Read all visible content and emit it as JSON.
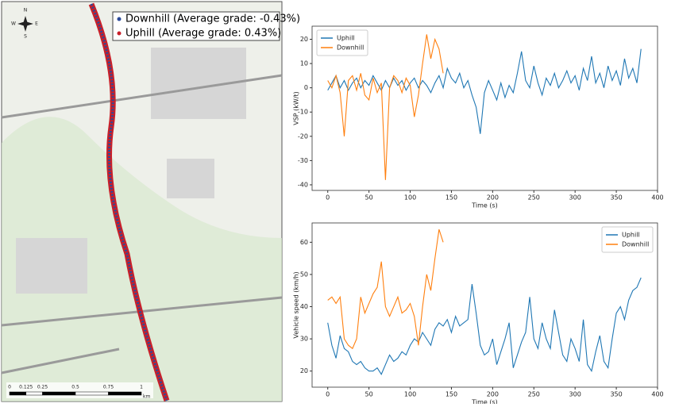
{
  "map": {
    "legend": [
      "Downhill (Average grade: -0.43%)",
      "Uphill (Average grade: 0.43%)"
    ],
    "legend_colors": [
      "#2b4a9a",
      "#c8202a"
    ],
    "compass": [
      "N",
      "S",
      "E",
      "W"
    ],
    "scale_labels": [
      "0",
      "0.125",
      "0.25",
      "0.5",
      "0.75",
      "1"
    ],
    "scale_unit": "km"
  },
  "chart_data": [
    {
      "type": "line",
      "ylabel": "VSP (kW/t)",
      "xlabel": "Time (s)",
      "legend": "upper left",
      "xlim": [
        -19,
        400
      ],
      "ylim": [
        -42.3,
        25.4
      ],
      "xticks": [
        0,
        50,
        100,
        150,
        200,
        250,
        300,
        350,
        400
      ],
      "yticks": [
        -40,
        -30,
        -20,
        -10,
        0,
        10,
        20
      ],
      "series": [
        {
          "name": "Uphill",
          "color": "#1f77b4",
          "x": [
            0,
            5,
            10,
            15,
            20,
            25,
            30,
            35,
            40,
            45,
            50,
            55,
            60,
            65,
            70,
            75,
            80,
            85,
            90,
            95,
            100,
            105,
            110,
            115,
            120,
            125,
            130,
            135,
            140,
            145,
            150,
            155,
            160,
            165,
            170,
            175,
            180,
            185,
            190,
            195,
            200,
            205,
            210,
            215,
            220,
            225,
            230,
            235,
            240,
            245,
            250,
            255,
            260,
            265,
            270,
            275,
            280,
            285,
            290,
            295,
            300,
            305,
            310,
            315,
            320,
            325,
            330,
            335,
            340,
            345,
            350,
            355,
            360,
            365,
            370,
            375,
            380
          ],
          "values": [
            -1,
            2,
            5,
            0,
            3,
            -1,
            2,
            4,
            0,
            3,
            1,
            5,
            2,
            -1,
            3,
            0,
            4,
            1,
            3,
            -1,
            2,
            4,
            0,
            3,
            1,
            -2,
            2,
            5,
            0,
            8,
            4,
            2,
            6,
            0,
            3,
            -3,
            -8,
            -19,
            -2,
            3,
            -1,
            -5,
            2,
            -4,
            1,
            -2,
            6,
            15,
            3,
            0,
            9,
            2,
            -3,
            4,
            1,
            6,
            0,
            3,
            7,
            2,
            5,
            -1,
            8,
            3,
            13,
            2,
            6,
            0,
            9,
            3,
            7,
            1,
            12,
            4,
            8,
            2,
            16
          ]
        },
        {
          "name": "Downhill",
          "color": "#ff7f0e",
          "x": [
            0,
            5,
            10,
            15,
            20,
            25,
            30,
            35,
            40,
            45,
            50,
            55,
            60,
            65,
            70,
            75,
            80,
            85,
            90,
            95,
            100,
            105,
            110,
            115,
            120,
            125,
            130,
            135,
            140
          ],
          "values": [
            3,
            0,
            5,
            -2,
            -20,
            3,
            5,
            -1,
            6,
            -3,
            -5,
            4,
            -2,
            2,
            -38,
            0,
            5,
            3,
            -2,
            4,
            1,
            -12,
            -3,
            10,
            22,
            12,
            20,
            16,
            6
          ]
        }
      ]
    },
    {
      "type": "line",
      "ylabel": "Vehicle speed (km/h)",
      "xlabel": "Time (s)",
      "legend": "upper right",
      "xlim": [
        -19,
        400
      ],
      "ylim": [
        15,
        66
      ],
      "xticks": [
        0,
        50,
        100,
        150,
        200,
        250,
        300,
        350,
        400
      ],
      "yticks": [
        20,
        30,
        40,
        50,
        60
      ],
      "series": [
        {
          "name": "Uphill",
          "color": "#1f77b4",
          "x": [
            0,
            5,
            10,
            15,
            20,
            25,
            30,
            35,
            40,
            45,
            50,
            55,
            60,
            65,
            70,
            75,
            80,
            85,
            90,
            95,
            100,
            105,
            110,
            115,
            120,
            125,
            130,
            135,
            140,
            145,
            150,
            155,
            160,
            165,
            170,
            175,
            180,
            185,
            190,
            195,
            200,
            205,
            210,
            215,
            220,
            225,
            230,
            235,
            240,
            245,
            250,
            255,
            260,
            265,
            270,
            275,
            280,
            285,
            290,
            295,
            300,
            305,
            310,
            315,
            320,
            325,
            330,
            335,
            340,
            345,
            350,
            355,
            360,
            365,
            370,
            375,
            380
          ],
          "values": [
            35,
            28,
            24,
            31,
            27,
            26,
            23,
            22,
            23,
            21,
            20,
            20,
            21,
            19,
            22,
            25,
            23,
            24,
            26,
            25,
            28,
            30,
            29,
            32,
            30,
            28,
            33,
            35,
            34,
            36,
            32,
            37,
            34,
            35,
            36,
            47,
            38,
            28,
            25,
            26,
            30,
            22,
            26,
            30,
            35,
            21,
            25,
            29,
            32,
            43,
            30,
            27,
            35,
            30,
            27,
            39,
            32,
            25,
            23,
            30,
            27,
            23,
            36,
            22,
            20,
            26,
            31,
            23,
            21,
            30,
            38,
            40,
            36,
            42,
            45,
            46,
            49
          ]
        },
        {
          "name": "Downhill",
          "color": "#ff7f0e",
          "x": [
            0,
            5,
            10,
            15,
            20,
            25,
            30,
            35,
            40,
            45,
            50,
            55,
            60,
            65,
            70,
            75,
            80,
            85,
            90,
            95,
            100,
            105,
            110,
            115,
            120,
            125,
            130,
            135,
            140
          ],
          "values": [
            42,
            43,
            41,
            43,
            30,
            28,
            27,
            30,
            43,
            38,
            41,
            44,
            46,
            54,
            40,
            37,
            40,
            43,
            38,
            39,
            41,
            37,
            28,
            40,
            50,
            45,
            55,
            64,
            60
          ]
        }
      ]
    }
  ]
}
